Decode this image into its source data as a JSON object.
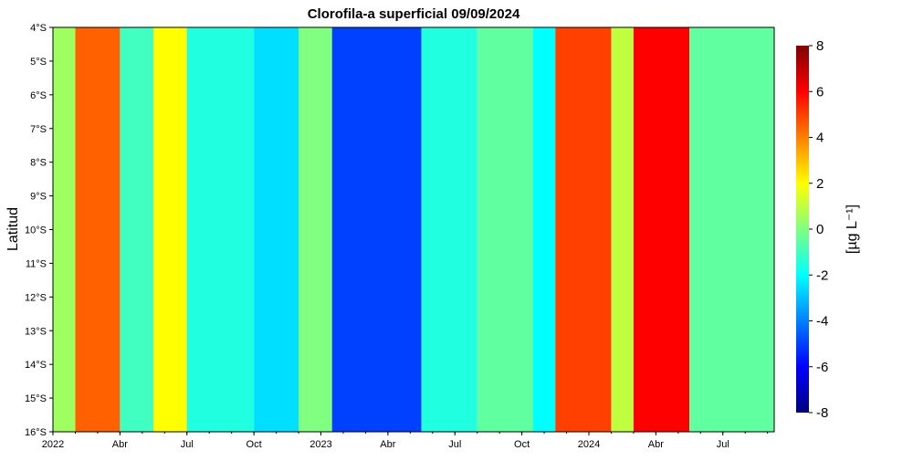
{
  "chart_data": {
    "type": "heatmap",
    "title": "Clorofila-a superficial 09/09/2024",
    "ylabel": "Latitud",
    "xlabel": "",
    "colorbar_label": "[µg L⁻¹]",
    "x_ticks": [
      {
        "label": "2022",
        "month": 0
      },
      {
        "label": "Abr",
        "month": 3
      },
      {
        "label": "Jul",
        "month": 6
      },
      {
        "label": "Oct",
        "month": 9
      },
      {
        "label": "2023",
        "month": 12
      },
      {
        "label": "Abr",
        "month": 15
      },
      {
        "label": "Jul",
        "month": 18
      },
      {
        "label": "Oct",
        "month": 21
      },
      {
        "label": "2024",
        "month": 24
      },
      {
        "label": "Abr",
        "month": 27
      },
      {
        "label": "Jul",
        "month": 30
      }
    ],
    "x_range_months": [
      0,
      32.3
    ],
    "y_ticks": [
      "4°S",
      "5°S",
      "6°S",
      "7°S",
      "8°S",
      "9°S",
      "10°S",
      "11°S",
      "12°S",
      "13°S",
      "14°S",
      "15°S",
      "16°S"
    ],
    "y_range_deg_south": [
      4,
      16
    ],
    "colorbar_ticks": [
      "8",
      "6",
      "4",
      "2",
      "0",
      "-2",
      "-4",
      "-6",
      "-8"
    ],
    "colorbar_range": [
      -8,
      8
    ],
    "colormap": [
      "#00007f",
      "#0000ff",
      "#0080ff",
      "#00ffff",
      "#80ff80",
      "#ffff00",
      "#ff8000",
      "#ff0000",
      "#7f0000"
    ],
    "bands": [
      {
        "start_month": 0.0,
        "end_month": 1.0,
        "value": 0.5
      },
      {
        "start_month": 1.0,
        "end_month": 3.0,
        "value": 4.5
      },
      {
        "start_month": 3.0,
        "end_month": 4.5,
        "value": -1.0
      },
      {
        "start_month": 4.5,
        "end_month": 6.0,
        "value": 2.0
      },
      {
        "start_month": 6.0,
        "end_month": 9.0,
        "value": -1.5
      },
      {
        "start_month": 9.0,
        "end_month": 11.0,
        "value": -2.5
      },
      {
        "start_month": 11.0,
        "end_month": 12.5,
        "value": 0.0
      },
      {
        "start_month": 12.5,
        "end_month": 16.5,
        "value": -5.0
      },
      {
        "start_month": 16.5,
        "end_month": 19.0,
        "value": -1.5
      },
      {
        "start_month": 19.0,
        "end_month": 21.5,
        "value": -0.5
      },
      {
        "start_month": 21.5,
        "end_month": 22.5,
        "value": -2.0
      },
      {
        "start_month": 22.5,
        "end_month": 25.0,
        "value": 5.0
      },
      {
        "start_month": 25.0,
        "end_month": 26.0,
        "value": 1.0
      },
      {
        "start_month": 26.0,
        "end_month": 28.5,
        "value": 6.0
      },
      {
        "start_month": 28.5,
        "end_month": 32.3,
        "value": -0.5
      }
    ]
  }
}
